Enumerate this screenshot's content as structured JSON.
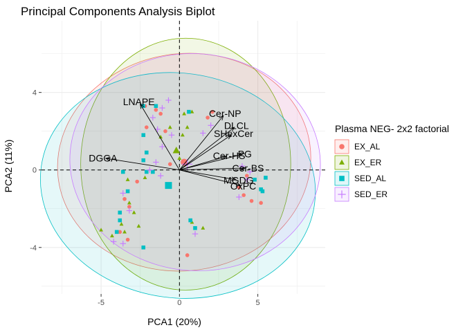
{
  "chart_data": {
    "type": "scatter",
    "title": "Principal Components Analysis Biplot",
    "xlabel": "PCA1 (20%)",
    "ylabel": "PCA2 (11%)",
    "xlim": [
      -8.8,
      9.3
    ],
    "ylim": [
      -6.4,
      7.7
    ],
    "x_ticks": [
      -5,
      0,
      5
    ],
    "y_ticks": [
      -4,
      0,
      4
    ],
    "grid": true,
    "legend": {
      "title": "Plasma NEG- 2x2 factorial",
      "placement": "right"
    },
    "series": [
      {
        "name": "EX_AL",
        "color": "#F8766D",
        "marker": "circle",
        "points": [
          [
            -2.2,
            3.3
          ],
          [
            -2.1,
            2.2
          ],
          [
            -1.5,
            3.1
          ],
          [
            -1.2,
            2.9
          ],
          [
            -0.9,
            2.0
          ],
          [
            -2.7,
            -0.6
          ],
          [
            -3.5,
            -1.5
          ],
          [
            -3.2,
            -1.9
          ],
          [
            -3.8,
            -3.2
          ],
          [
            -3.3,
            -3.6
          ],
          [
            0.5,
            -4.4
          ],
          [
            3.8,
            -0.9
          ],
          [
            4.1,
            -1.3
          ],
          [
            4.6,
            -1.6
          ],
          [
            5.2,
            -1.7
          ],
          [
            4.3,
            -0.3
          ],
          [
            2.1,
            3.0
          ],
          [
            1.8,
            2.7
          ],
          [
            -0.6,
            0.3
          ]
        ],
        "centroid": [
          0.3,
          0.4
        ],
        "ellipse": {
          "cx": 0.3,
          "cy": 0.4,
          "rx": 8.1,
          "ry": 5.6,
          "angle": -8
        }
      },
      {
        "name": "EX_ER",
        "color": "#7CAE00",
        "marker": "triangle",
        "points": [
          [
            0.3,
            2.9
          ],
          [
            0.8,
            3.0
          ],
          [
            0.5,
            2.2
          ],
          [
            0.2,
            1.8
          ],
          [
            0.0,
            0.6
          ],
          [
            -2.2,
            -0.4
          ],
          [
            -3.3,
            -0.5
          ],
          [
            -3.2,
            -1.7
          ],
          [
            -3.7,
            -2.8
          ],
          [
            -2.9,
            -2.2
          ],
          [
            -2.6,
            -2.9
          ],
          [
            -3.5,
            -3.2
          ],
          [
            -5.0,
            -3.1
          ],
          [
            -4.3,
            -3.4
          ],
          [
            0.8,
            -2.7
          ],
          [
            1.5,
            -3.0
          ],
          [
            -0.6,
            2.2
          ],
          [
            -1.2,
            1.7
          ]
        ],
        "centroid": [
          -0.2,
          1.0
        ],
        "ellipse": {
          "cx": 0.4,
          "cy": 0.3,
          "rx": 6.7,
          "ry": 6.5,
          "angle": 0
        }
      },
      {
        "name": "SED_AL",
        "color": "#00BFC4",
        "marker": "square",
        "points": [
          [
            -2.3,
            3.3
          ],
          [
            -1.5,
            3.3
          ],
          [
            0.6,
            3.0
          ],
          [
            -2.3,
            1.8
          ],
          [
            -2.1,
            0.9
          ],
          [
            -2.3,
            0.5
          ],
          [
            -3.6,
            -0.1
          ],
          [
            -2.1,
            -0.1
          ],
          [
            -1.7,
            -0.1
          ],
          [
            -3.3,
            -1.1
          ],
          [
            -3.8,
            -2.2
          ],
          [
            -3.8,
            -2.6
          ],
          [
            -4.0,
            -3.2
          ],
          [
            -2.3,
            -4.0
          ],
          [
            0.7,
            -2.6
          ],
          [
            1.0,
            -3.0
          ],
          [
            5.3,
            -1.1
          ],
          [
            5.2,
            -1.0
          ],
          [
            5.5,
            -0.4
          ],
          [
            4.8,
            -0.5
          ]
        ],
        "centroid": [
          -0.7,
          -0.8
        ],
        "ellipse": {
          "cx": -0.1,
          "cy": -0.8,
          "rx": 8.8,
          "ry": 5.8,
          "angle": 8
        }
      },
      {
        "name": "SED_ER",
        "color": "#C77CFF",
        "marker": "plus",
        "points": [
          [
            -0.7,
            3.6
          ],
          [
            -1.1,
            3.2
          ],
          [
            -1.7,
            2.7
          ],
          [
            -1.4,
            2.1
          ],
          [
            -1.1,
            1.2
          ],
          [
            -1.5,
            0.4
          ],
          [
            -1.9,
            0.0
          ],
          [
            -1.2,
            -0.3
          ],
          [
            -3.6,
            -1.2
          ],
          [
            -3.2,
            -2.1
          ],
          [
            -4.2,
            -3.7
          ],
          [
            -3.6,
            -3.8
          ],
          [
            1.0,
            -3.3
          ],
          [
            4.0,
            0.2
          ],
          [
            4.5,
            -0.1
          ],
          [
            4.3,
            -0.5
          ],
          [
            3.8,
            -1.4
          ],
          [
            1.5,
            1.9
          ],
          [
            2.0,
            2.3
          ],
          [
            -0.5,
            1.8
          ]
        ],
        "centroid": [
          0.5,
          0.3
        ],
        "ellipse": {
          "cx": 1.0,
          "cy": 0.4,
          "rx": 8.0,
          "ry": 5.6,
          "angle": 5
        }
      }
    ],
    "loadings": [
      {
        "label": "LNAPE",
        "x": -2.5,
        "y": 3.4
      },
      {
        "label": "Cer-NP",
        "x": 2.8,
        "y": 2.8
      },
      {
        "label": "DLCL",
        "x": 3.5,
        "y": 2.2
      },
      {
        "label": "SHexCer",
        "x": 3.3,
        "y": 1.8
      },
      {
        "label": "PG",
        "x": 4.0,
        "y": 0.8
      },
      {
        "label": "Cer-HS",
        "x": 3.0,
        "y": 0.7
      },
      {
        "label": "Cer-BS",
        "x": 4.2,
        "y": 0.1
      },
      {
        "label": "DGGA",
        "x": -4.7,
        "y": 0.6
      },
      {
        "label": "OxPC",
        "x": 3.9,
        "y": -0.8
      },
      {
        "label": "MGDG",
        "x": 3.6,
        "y": -0.5
      }
    ]
  }
}
